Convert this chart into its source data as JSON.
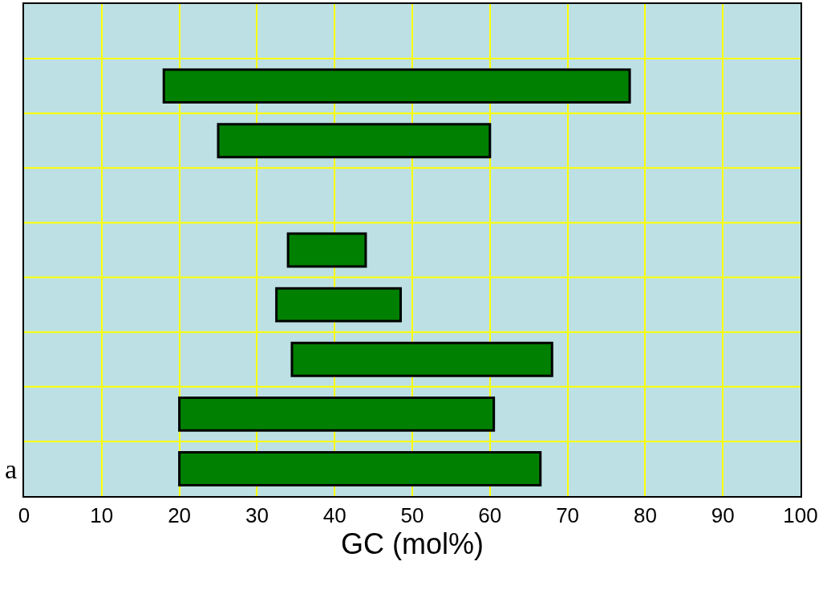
{
  "chart_data": {
    "type": "bar",
    "orientation": "horizontal",
    "xlabel": "GC (mol%)",
    "categories": [
      null,
      null,
      null,
      null,
      null,
      null,
      null,
      null,
      "a"
    ],
    "base": [
      null,
      18,
      25,
      null,
      34,
      32.5,
      34.5,
      20,
      20
    ],
    "values": [
      null,
      60,
      35,
      null,
      10,
      16,
      33.5,
      40.5,
      46.5
    ],
    "color": "#008000",
    "xlim": [
      0,
      100
    ],
    "xticks": [
      0,
      10,
      20,
      30,
      40,
      50,
      60,
      70,
      80,
      90,
      100
    ],
    "grid": true
  }
}
